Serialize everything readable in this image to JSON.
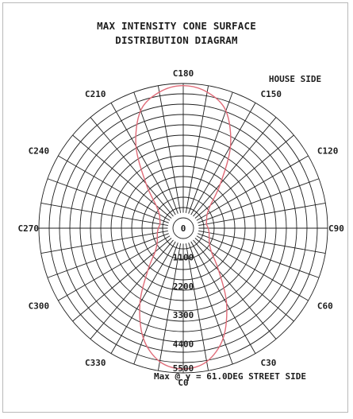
{
  "chart_data": {
    "type": "polar",
    "title": "MAX INTENSITY CONE SURFACE",
    "subtitle": "DISTRIBUTION DIAGRAM",
    "angle_labels": [
      "C0",
      "C30",
      "C60",
      "C90",
      "C120",
      "C150",
      "C180",
      "C210",
      "C240",
      "C270",
      "C300",
      "C330"
    ],
    "angle_values": [
      0,
      30,
      60,
      90,
      120,
      150,
      180,
      210,
      240,
      270,
      300,
      330
    ],
    "radial_ticks": [
      "0",
      "1100",
      "2200",
      "3300",
      "4400",
      "5500"
    ],
    "radial_max": 5500,
    "annotations": {
      "house_side": "HOUSE SIDE",
      "max_note": "Max @ γ = 61.0DEG STREET SIDE"
    },
    "series": [
      {
        "color": "#e06b78",
        "points": [
          [
            0,
            5350
          ],
          [
            10,
            5150
          ],
          [
            20,
            4450
          ],
          [
            30,
            3300
          ],
          [
            40,
            2100
          ],
          [
            50,
            1400
          ],
          [
            60,
            1150
          ],
          [
            70,
            1050
          ],
          [
            80,
            1000
          ],
          [
            90,
            950
          ],
          [
            100,
            900
          ],
          [
            110,
            950
          ],
          [
            120,
            1050
          ],
          [
            130,
            1350
          ],
          [
            140,
            2200
          ],
          [
            150,
            3600
          ],
          [
            160,
            4750
          ],
          [
            170,
            5250
          ],
          [
            180,
            5420
          ],
          [
            190,
            5250
          ],
          [
            200,
            4750
          ],
          [
            210,
            3600
          ],
          [
            220,
            2200
          ],
          [
            230,
            1350
          ],
          [
            240,
            1050
          ],
          [
            250,
            950
          ],
          [
            260,
            900
          ],
          [
            270,
            950
          ],
          [
            280,
            1000
          ],
          [
            290,
            1050
          ],
          [
            300,
            1150
          ],
          [
            310,
            1400
          ],
          [
            320,
            2100
          ],
          [
            330,
            3300
          ],
          [
            340,
            4450
          ],
          [
            350,
            5150
          ]
        ]
      }
    ],
    "grid": true
  }
}
